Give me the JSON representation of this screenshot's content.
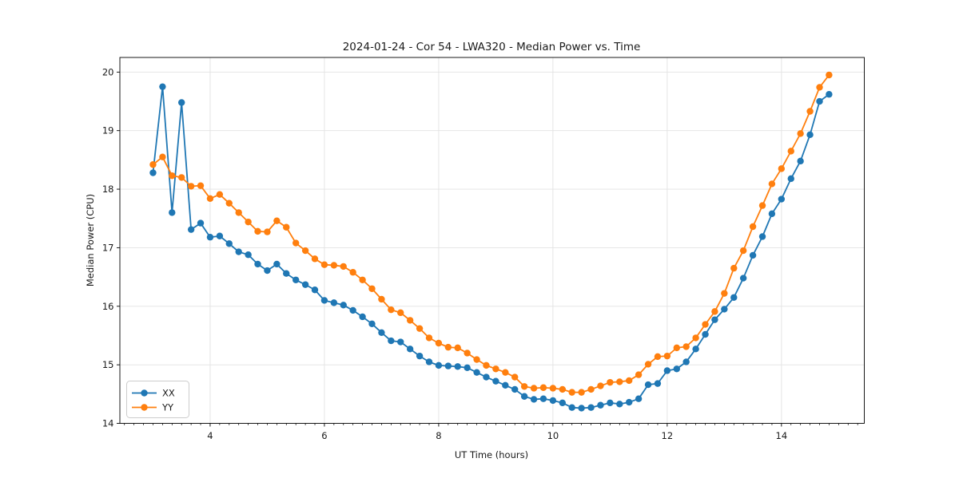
{
  "figure": {
    "title": "2024-01-24 - Cor 54 - LWA320 - Median Power vs. Time",
    "xlabel": "UT Time (hours)",
    "ylabel": "Median Power (CPU)"
  },
  "legend": {
    "position": "lower left",
    "entries": [
      {
        "label": "XX",
        "color": "#1f77b4"
      },
      {
        "label": "YY",
        "color": "#ff7f0e"
      }
    ]
  },
  "chart_data": {
    "type": "line",
    "title": "2024-01-24 - Cor 54 - LWA320 - Median Power vs. Time",
    "xlabel": "UT Time (hours)",
    "ylabel": "Median Power (CPU)",
    "xlim": [
      2.42,
      15.45
    ],
    "ylim": [
      14.0,
      20.25
    ],
    "xticks": [
      4,
      6,
      8,
      10,
      12,
      14
    ],
    "yticks": [
      14,
      15,
      16,
      17,
      18,
      19,
      20
    ],
    "x_minor_step": 0.16667,
    "grid": true,
    "legend_position": "lower left",
    "x": [
      3.0,
      3.167,
      3.333,
      3.5,
      3.667,
      3.833,
      4.0,
      4.167,
      4.333,
      4.5,
      4.667,
      4.833,
      5.0,
      5.167,
      5.333,
      5.5,
      5.667,
      5.833,
      6.0,
      6.167,
      6.333,
      6.5,
      6.667,
      6.833,
      7.0,
      7.167,
      7.333,
      7.5,
      7.667,
      7.833,
      8.0,
      8.167,
      8.333,
      8.5,
      8.667,
      8.833,
      9.0,
      9.167,
      9.333,
      9.5,
      9.667,
      9.833,
      10.0,
      10.167,
      10.333,
      10.5,
      10.667,
      10.833,
      11.0,
      11.167,
      11.333,
      11.5,
      11.667,
      11.833,
      12.0,
      12.167,
      12.333,
      12.5,
      12.667,
      12.833,
      13.0,
      13.167,
      13.333,
      13.5,
      13.667,
      13.833,
      14.0,
      14.167,
      14.333,
      14.5,
      14.667,
      14.833
    ],
    "series": [
      {
        "name": "XX",
        "color": "#1f77b4",
        "marker": "circle",
        "values": [
          18.28,
          19.75,
          17.6,
          19.48,
          17.31,
          17.42,
          17.18,
          17.2,
          17.07,
          16.93,
          16.88,
          16.72,
          16.61,
          16.72,
          16.56,
          16.45,
          16.37,
          16.28,
          16.1,
          16.06,
          16.02,
          15.93,
          15.82,
          15.7,
          15.55,
          15.41,
          15.39,
          15.27,
          15.15,
          15.05,
          14.99,
          14.98,
          14.97,
          14.95,
          14.87,
          14.79,
          14.72,
          14.65,
          14.58,
          14.46,
          14.41,
          14.42,
          14.39,
          14.35,
          14.27,
          14.26,
          14.27,
          14.31,
          14.35,
          14.33,
          14.36,
          14.42,
          14.66,
          14.68,
          14.9,
          14.93,
          15.05,
          15.27,
          15.52,
          15.77,
          15.95,
          16.15,
          16.48,
          16.87,
          17.19,
          17.58,
          17.83,
          18.18,
          18.48,
          18.93,
          19.5,
          19.62
        ]
      },
      {
        "name": "YY",
        "color": "#ff7f0e",
        "marker": "circle",
        "values": [
          18.42,
          18.55,
          18.23,
          18.2,
          18.05,
          18.06,
          17.84,
          17.91,
          17.76,
          17.6,
          17.44,
          17.28,
          17.27,
          17.46,
          17.35,
          17.08,
          16.95,
          16.81,
          16.71,
          16.7,
          16.68,
          16.58,
          16.45,
          16.3,
          16.12,
          15.94,
          15.89,
          15.76,
          15.62,
          15.46,
          15.37,
          15.3,
          15.29,
          15.2,
          15.09,
          14.99,
          14.93,
          14.87,
          14.79,
          14.63,
          14.6,
          14.61,
          14.6,
          14.58,
          14.53,
          14.53,
          14.58,
          14.64,
          14.7,
          14.71,
          14.73,
          14.83,
          15.01,
          15.14,
          15.15,
          15.29,
          15.31,
          15.46,
          15.69,
          15.91,
          16.22,
          16.65,
          16.95,
          17.36,
          17.72,
          18.09,
          18.35,
          18.65,
          18.95,
          19.33,
          19.74,
          19.95
        ]
      }
    ]
  }
}
